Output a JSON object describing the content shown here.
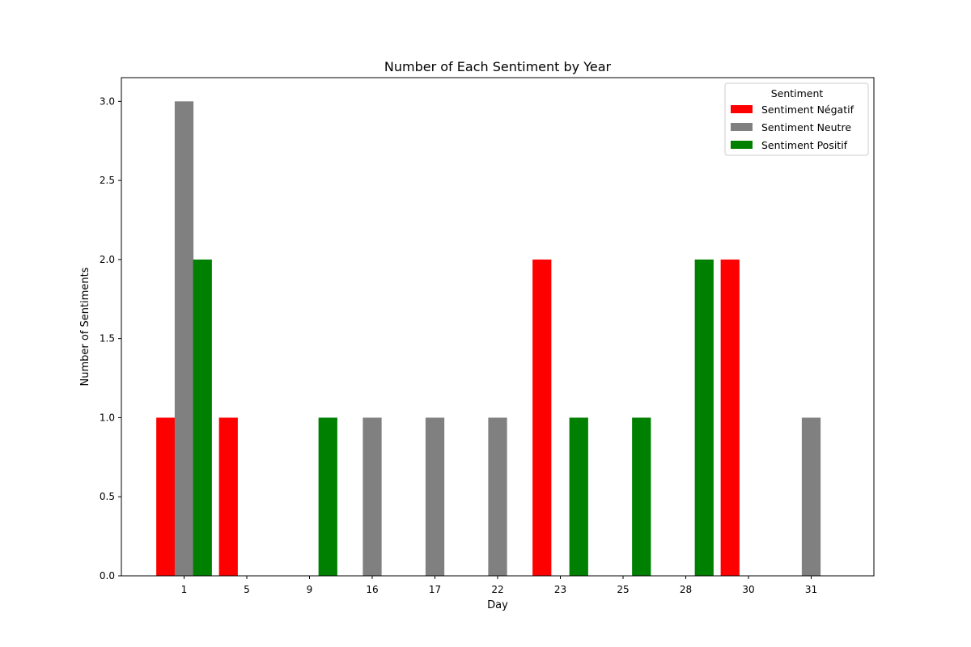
{
  "chart_data": {
    "type": "bar",
    "title": "Number of Each Sentiment by Year",
    "xlabel": "Day",
    "ylabel": "Number of Sentiments",
    "ylim": [
      0,
      3.15
    ],
    "yticks": [
      "0.0",
      "0.5",
      "1.0",
      "1.5",
      "2.0",
      "2.5",
      "3.0"
    ],
    "categories": [
      "1",
      "5",
      "9",
      "16",
      "17",
      "22",
      "23",
      "25",
      "28",
      "30",
      "31"
    ],
    "series": [
      {
        "name": "Sentiment Négatif",
        "color": "#ff0000",
        "values": [
          1,
          1,
          0,
          0,
          0,
          0,
          2,
          0,
          0,
          2,
          0
        ]
      },
      {
        "name": "Sentiment Neutre",
        "color": "#808080",
        "values": [
          3,
          0,
          0,
          1,
          1,
          1,
          0,
          0,
          0,
          0,
          1
        ]
      },
      {
        "name": "Sentiment Positif",
        "color": "#008000",
        "values": [
          2,
          0,
          1,
          0,
          0,
          0,
          1,
          1,
          2,
          0,
          0
        ]
      }
    ],
    "legend": {
      "title": "Sentiment",
      "placement": "top-right"
    },
    "grid": false
  }
}
